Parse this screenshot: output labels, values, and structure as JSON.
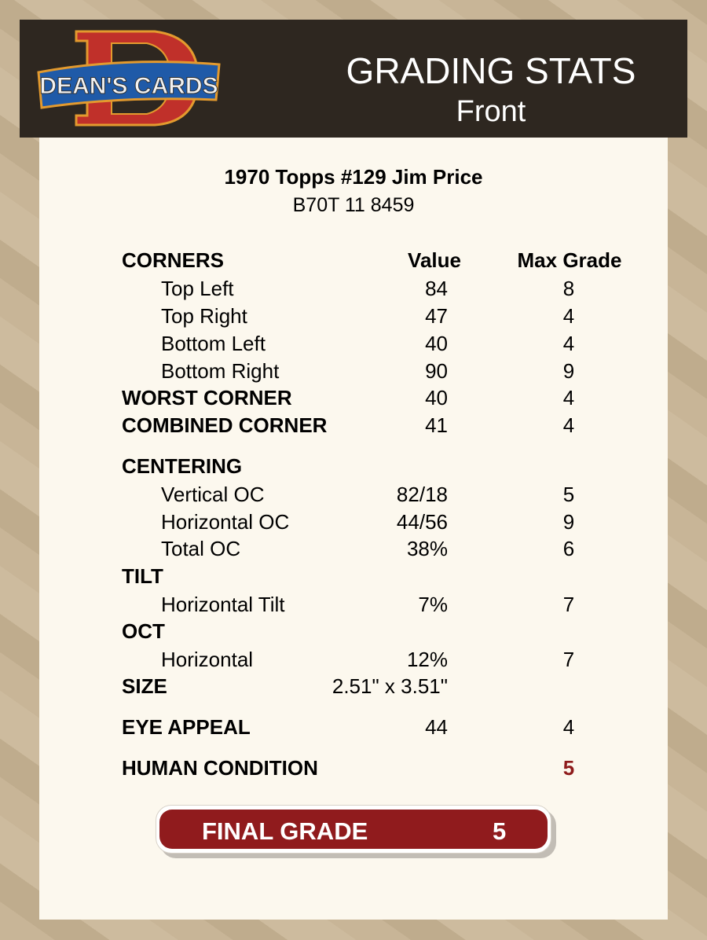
{
  "header": {
    "logo_text": "DEAN'S CARDS",
    "title": "GRADING STATS",
    "subtitle": "Front"
  },
  "card": {
    "title": "1970 Topps #129 Jim Price",
    "code": "B70T 11 8459"
  },
  "columns": {
    "value": "Value",
    "max_grade": "Max Grade"
  },
  "rows": [
    {
      "label": "CORNERS",
      "style": "heading",
      "value": "",
      "max": ""
    },
    {
      "label": "Top Left",
      "style": "sub",
      "value": "84",
      "max": "8"
    },
    {
      "label": "Top Right",
      "style": "sub",
      "value": "47",
      "max": "4"
    },
    {
      "label": "Bottom Left",
      "style": "sub",
      "value": "40",
      "max": "4"
    },
    {
      "label": "Bottom Right",
      "style": "sub",
      "value": "90",
      "max": "9"
    },
    {
      "label": "WORST CORNER",
      "style": "bold",
      "value": "40",
      "max": "4"
    },
    {
      "label": "COMBINED CORNER",
      "style": "bold",
      "value": "41",
      "max": "4"
    },
    {
      "label": "CENTERING",
      "style": "bold",
      "value": "",
      "max": ""
    },
    {
      "label": "Vertical OC",
      "style": "sub",
      "value": "82/18",
      "max": "5"
    },
    {
      "label": "Horizontal OC",
      "style": "sub",
      "value": "44/56",
      "max": "9"
    },
    {
      "label": "Total OC",
      "style": "sub",
      "value": "38%",
      "max": "6"
    },
    {
      "label": "TILT",
      "style": "bold",
      "value": "",
      "max": ""
    },
    {
      "label": "Horizontal Tilt",
      "style": "sub",
      "value": "7%",
      "max": "7"
    },
    {
      "label": "OCT",
      "style": "bold",
      "value": "",
      "max": ""
    },
    {
      "label": "Horizontal",
      "style": "sub",
      "value": "12%",
      "max": "7"
    },
    {
      "label": "SIZE",
      "style": "bold",
      "value": "2.51\" x 3.51\"",
      "max": ""
    },
    {
      "label": "EYE APPEAL",
      "style": "bold",
      "value": "44",
      "max": "4"
    },
    {
      "label": "HUMAN CONDITION",
      "style": "bold",
      "value": "",
      "max": "5",
      "max_color": "#8e1b1b"
    }
  ],
  "final_grade": {
    "label": "FINAL GRADE",
    "value": "5",
    "color": "#901b1d"
  }
}
